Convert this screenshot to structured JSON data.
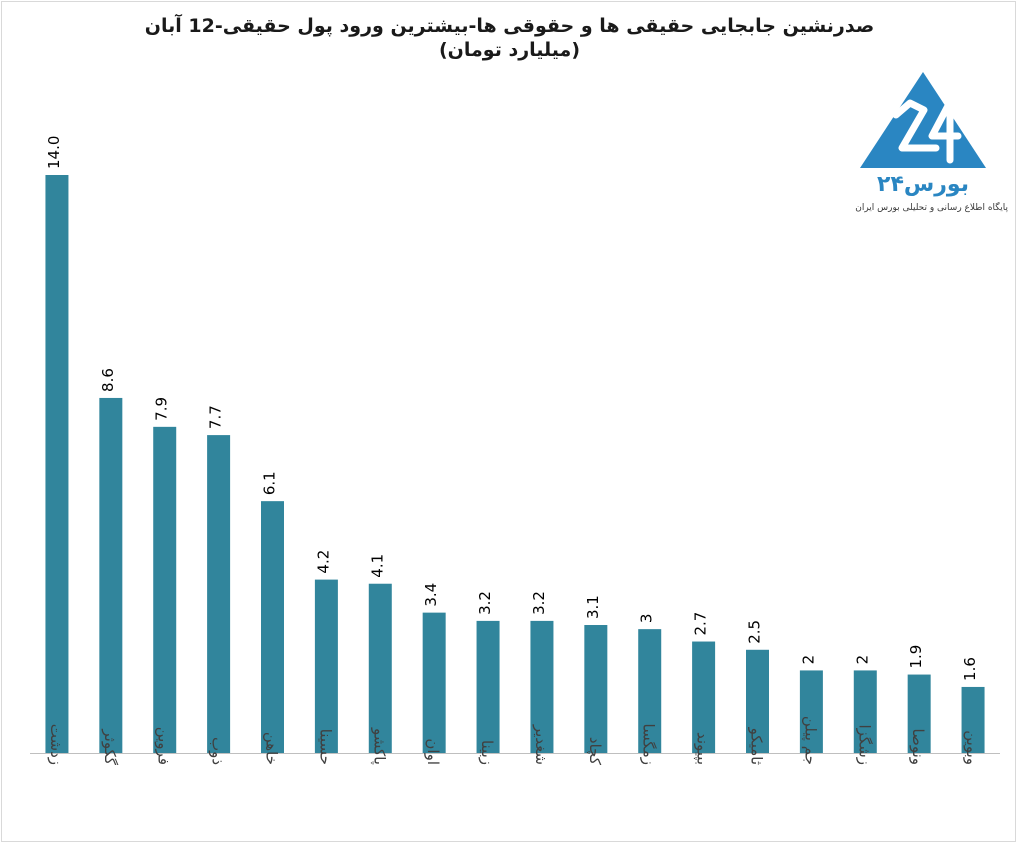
{
  "title": {
    "line1": "صدرنشین جابجایی حقیقی ها و حقوقی ها-بیشترین ورود پول حقیقی-12 آبان",
    "line2": "(میلیارد تومان)"
  },
  "logo": {
    "wordmark": "بورس۲۴",
    "tagline": "پایگاه اطلاع رسانی و تحلیلی بورس ایران",
    "color": "#2a86c2"
  },
  "colors": {
    "bar": "#31859c",
    "axis": "#bfbfbf",
    "label": "#000000"
  },
  "chart_data": {
    "type": "bar",
    "title": "صدرنشین جابجایی حقیقی ها و حقوقی ها-بیشترین ورود پول حقیقی-12 آبان",
    "subtitle": "(میلیارد تومان)",
    "categories": [
      "زدشت",
      "گکوثر",
      "فروین",
      "ذوب",
      "خاهن",
      "حسینا",
      "پاکشو",
      "اوان",
      "زبینا",
      "شغدیر",
      "کچاد",
      "زمگسا",
      "بپیوند",
      "ثامیکو",
      "جم پیلن",
      "زشگزا",
      "ونوصا",
      "وبوین"
    ],
    "value_labels": [
      "14.0",
      "8.6",
      "7.9",
      "7.7",
      "6.1",
      "4.2",
      "4.1",
      "3.4",
      "3.2",
      "3.2",
      "3.1",
      "3",
      "2.7",
      "2.5",
      "2",
      "2",
      "1.9",
      "1.6"
    ],
    "values": [
      14.0,
      8.6,
      7.9,
      7.7,
      6.1,
      4.2,
      4.1,
      3.4,
      3.2,
      3.2,
      3.1,
      3,
      2.7,
      2.5,
      2,
      2,
      1.9,
      1.6
    ],
    "ylim": [
      0,
      14.0
    ],
    "grid": false,
    "legend": "none"
  }
}
